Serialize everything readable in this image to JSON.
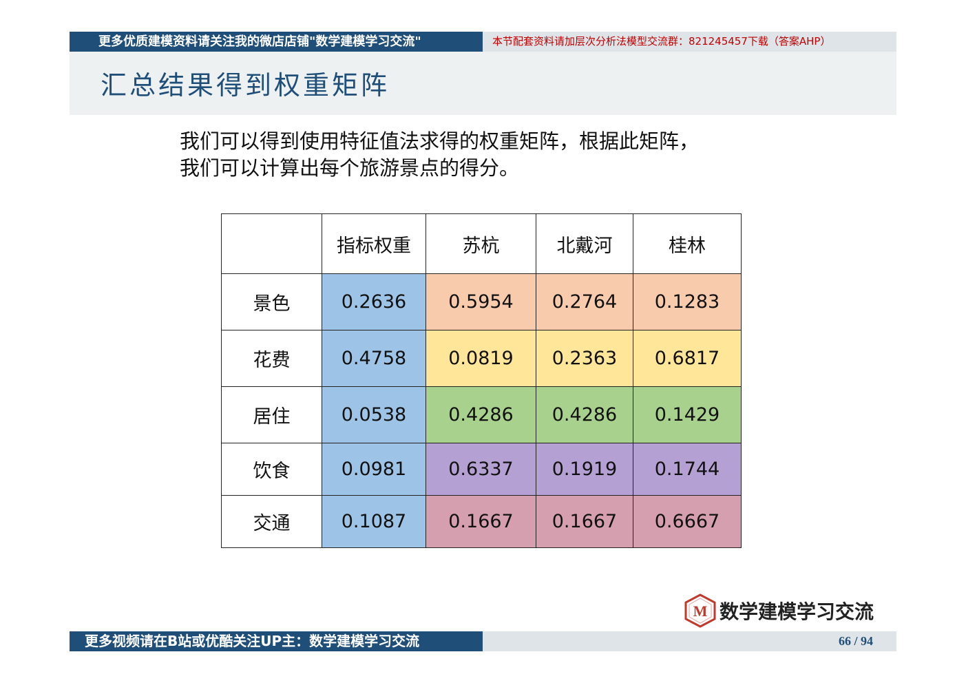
{
  "top_banner": {
    "left_text": "更多优质建模资料请关注我的微店店铺\"数学建模学习交流\"",
    "right_text": "本节配套资料请加层次分析法模型交流群：821245457下载（答案AHP）"
  },
  "page_title": "汇总结果得到权重矩阵",
  "intro": {
    "line1": "我们可以得到使用特征值法求得的权重矩阵，根据此矩阵，",
    "line2": "我们可以计算出每个旅游景点的得分。"
  },
  "table": {
    "headers": [
      "",
      "指标权重",
      "苏杭",
      "北戴河",
      "桂林"
    ],
    "rows": [
      {
        "label": "景色",
        "weight": "0.2636",
        "values": [
          "0.5954",
          "0.2764",
          "0.1283"
        ]
      },
      {
        "label": "花费",
        "weight": "0.4758",
        "values": [
          "0.0819",
          "0.2363",
          "0.6817"
        ]
      },
      {
        "label": "居住",
        "weight": "0.0538",
        "values": [
          "0.4286",
          "0.4286",
          "0.1429"
        ]
      },
      {
        "label": "饮食",
        "weight": "0.0981",
        "values": [
          "0.6337",
          "0.1919",
          "0.1744"
        ]
      },
      {
        "label": "交通",
        "weight": "0.1087",
        "values": [
          "0.1667",
          "0.1667",
          "0.6667"
        ]
      }
    ]
  },
  "logo": {
    "mark": "M",
    "text": "数学建模学习交流"
  },
  "bottom_banner": {
    "left_text": "更多视频请在B站或优酷关注UP主：数学建模学习交流",
    "page_number": "66 / 94"
  },
  "colors": {
    "banner_blue": "#1f4e79",
    "banner_gray": "#dfe4e8",
    "weight_col": "#9dc3e6",
    "row_scenery": "#f8cbad",
    "row_cost": "#ffe699",
    "row_lodging": "#a9d18e",
    "row_food": "#b4a0d2",
    "row_transport": "#d59fb0"
  }
}
